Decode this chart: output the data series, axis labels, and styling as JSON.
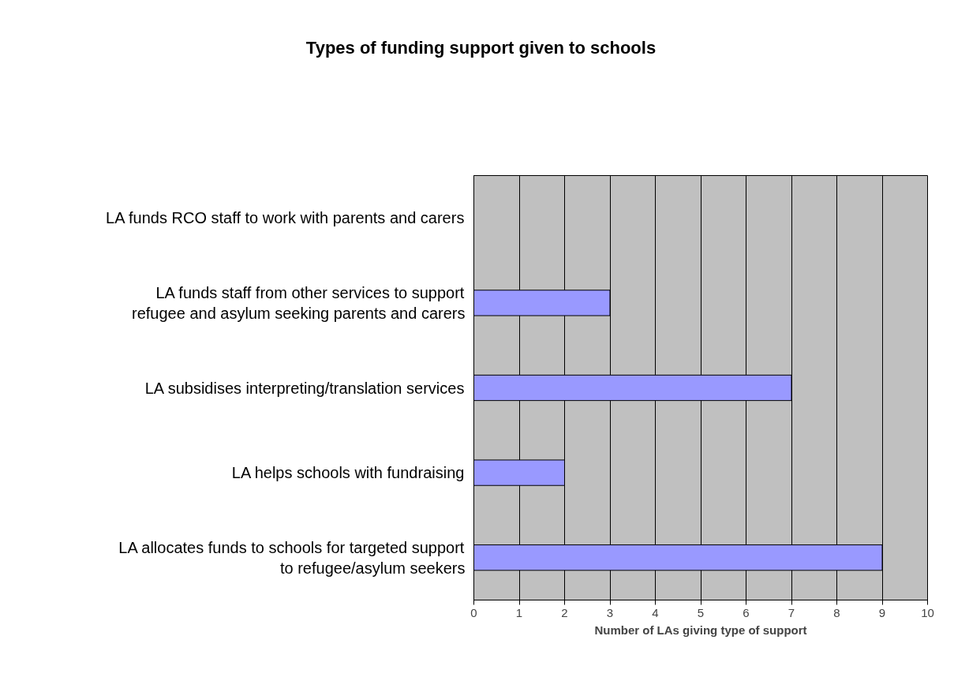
{
  "chart_data": {
    "type": "bar",
    "orientation": "horizontal",
    "title": "Types of funding support given to schools",
    "xlabel": "Number of LAs giving type of support",
    "categories": [
      "LA funds RCO staff to work with parents and carers",
      "LA funds staff from other services to support refugee and asylum seeking parents and carers",
      "LA subsidises interpreting/translation services",
      "LA helps schools with fundraising",
      "LA allocates funds to schools for targeted support to refugee/asylum seekers"
    ],
    "values": [
      0,
      3,
      7,
      2,
      9
    ],
    "color": "#9999ff",
    "xlim": [
      0,
      10
    ],
    "xticks": [
      0,
      1,
      2,
      3,
      4,
      5,
      6,
      7,
      8,
      9,
      10
    ],
    "grid": "x"
  }
}
